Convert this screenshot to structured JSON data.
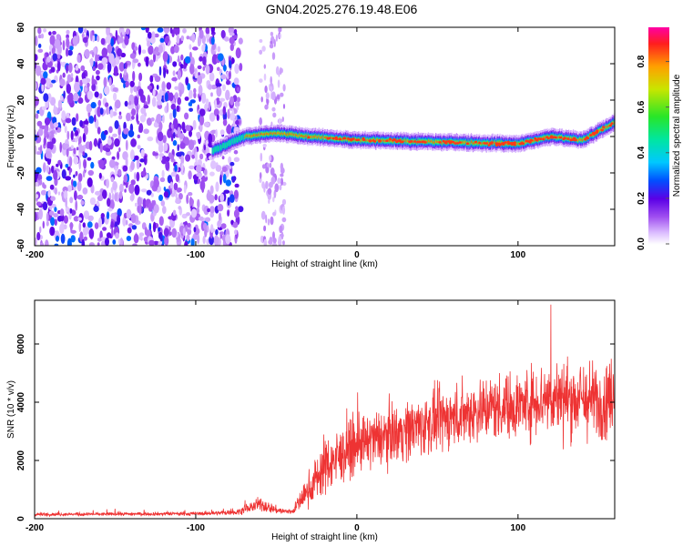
{
  "title": "GN04.2025.276.19.48.E06",
  "chart_data": [
    {
      "type": "heatmap",
      "xlabel": "Height of straight line (km)",
      "ylabel": "Frequency (Hz)",
      "xlim": [
        -200,
        160
      ],
      "ylim": [
        -60,
        60
      ],
      "xticks": [
        -200,
        -100,
        0,
        100
      ],
      "yticks": [
        -60,
        -40,
        -20,
        0,
        20,
        40,
        60
      ],
      "colorbar": {
        "label": "Normalized spectral amplitude",
        "range": [
          0,
          0.95
        ],
        "ticks": [
          0.0,
          0.2,
          0.4,
          0.6,
          0.8
        ]
      },
      "regions": [
        {
          "x": [
            -200,
            -72
          ],
          "y": [
            -60,
            60
          ],
          "amplitude": 0.1,
          "description_level": "broadband noise"
        },
        {
          "x": [
            -60,
            -45
          ],
          "y": [
            -60,
            60
          ],
          "amplitude": 0.03
        },
        {
          "x": [
            -90,
            160
          ],
          "y": [
            -8,
            8
          ],
          "amplitude": 0.9
        }
      ],
      "ridge": {
        "x": [
          -90,
          -70,
          -50,
          -30,
          0,
          50,
          100,
          120,
          140,
          160
        ],
        "freq": [
          -8,
          0,
          2,
          0,
          -2,
          -3,
          -4,
          0,
          -2,
          8
        ]
      },
      "grid": false
    },
    {
      "type": "line",
      "xlabel": "Height of straight line (km)",
      "ylabel": "SNR (10 * v/v)",
      "xlim": [
        -200,
        160
      ],
      "ylim": [
        0,
        7500
      ],
      "xticks": [
        -200,
        -100,
        0,
        100
      ],
      "yticks": [
        0,
        2000,
        4000,
        6000
      ],
      "series_color": "#ee3333",
      "envelope": {
        "x": [
          -200,
          -150,
          -100,
          -75,
          -60,
          -50,
          -45,
          -40,
          -30,
          -20,
          0,
          20,
          40,
          60,
          80,
          100,
          120,
          140,
          150,
          160
        ],
        "mean": [
          150,
          160,
          170,
          220,
          500,
          300,
          250,
          250,
          1000,
          1800,
          2500,
          2900,
          3200,
          3500,
          3800,
          3900,
          4200,
          4100,
          4000,
          4300
        ],
        "spread": [
          80,
          80,
          90,
          120,
          350,
          200,
          150,
          150,
          800,
          1400,
          1300,
          1400,
          1500,
          1500,
          1600,
          1600,
          1800,
          1900,
          1900,
          1800
        ]
      },
      "grid": false
    }
  ]
}
